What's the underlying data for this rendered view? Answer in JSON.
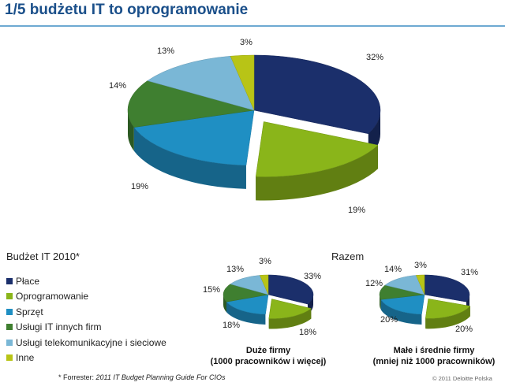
{
  "title": "1/5 budżetu IT to oprogramowanie",
  "legend": {
    "title": "Budżet IT 2010*",
    "items": [
      {
        "label": "Płace",
        "color": "#1b2f6b"
      },
      {
        "label": "Oprogramowanie",
        "color": "#8ab51a"
      },
      {
        "label": "Sprzęt",
        "color": "#1f8fc3"
      },
      {
        "label": "Usługi IT innych firm",
        "color": "#3f7f30"
      },
      {
        "label": "Usługi telekomunikacyjne i sieciowe",
        "color": "#7ab7d6"
      },
      {
        "label": "Inne",
        "color": "#b8c416"
      }
    ]
  },
  "razem_label": "Razem",
  "captions": {
    "large_line1": "Duże firmy",
    "large_line2": "(1000 pracowników i więcej)",
    "small_line1": "Małe i średnie firmy",
    "small_line2": "(mniej niż 1000 pracowników)"
  },
  "footnote": {
    "prefix": "* Forrester: ",
    "italic": "2011 IT Budget Planning Guide For CIOs"
  },
  "copyright": "© 2011 Deloitte Polska",
  "chart_data": [
    {
      "type": "pie",
      "title": "Budżet IT 2010",
      "categories": [
        "Płace",
        "Oprogramowanie",
        "Sprzęt",
        "Usługi IT innych firm",
        "Usługi telekomunikacyjne i sieciowe",
        "Inne"
      ],
      "values": [
        32,
        19,
        19,
        14,
        13,
        3
      ],
      "labels": [
        "32%",
        "19%",
        "19%",
        "14%",
        "13%",
        "3%"
      ]
    },
    {
      "type": "pie",
      "title": "Duże firmy (1000 pracowników i więcej)",
      "categories": [
        "Płace",
        "Oprogramowanie",
        "Sprzęt",
        "Usługi IT innych firm",
        "Usługi telekomunikacyjne i sieciowe",
        "Inne"
      ],
      "values": [
        33,
        18,
        18,
        15,
        13,
        3
      ],
      "labels": [
        "33%",
        "18%",
        "18%",
        "15%",
        "13%",
        "3%"
      ]
    },
    {
      "type": "pie",
      "title": "Małe i średnie firmy (mniej niż 1000 pracowników)",
      "categories": [
        "Płace",
        "Oprogramowanie",
        "Sprzęt",
        "Usługi IT innych firm",
        "Usługi telekomunikacyjne i sieciowe",
        "Inne"
      ],
      "values": [
        31,
        20,
        20,
        12,
        14,
        3
      ],
      "labels": [
        "31%",
        "20%",
        "20%",
        "12%",
        "14%",
        "3%"
      ]
    }
  ]
}
